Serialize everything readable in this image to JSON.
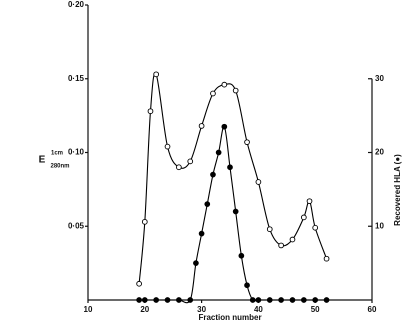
{
  "chart_data": {
    "type": "line",
    "xlabel": "Fraction number",
    "ylabel": "E",
    "ylabel_sup": "1cm",
    "ylabel_sub": "280nm",
    "y2label": "Recovered HLA (●)",
    "xlim": [
      10,
      60
    ],
    "xticks": [
      10,
      20,
      30,
      40,
      50,
      60
    ],
    "ylim": [
      0,
      0.2
    ],
    "yticks": [
      {
        "value": 0.05,
        "label": "0·05"
      },
      {
        "value": 0.1,
        "label": "0·10"
      },
      {
        "value": 0.15,
        "label": "0·15"
      },
      {
        "value": 0.2,
        "label": "0·20"
      }
    ],
    "y2lim": [
      0,
      40
    ],
    "y2ticks": [
      10,
      20,
      30
    ],
    "series": [
      {
        "marker": "open",
        "color": "#000000",
        "x": [
          19,
          20,
          21,
          22,
          24,
          26,
          28,
          30,
          32,
          34,
          36,
          38,
          40,
          42,
          44,
          46,
          48,
          49,
          50,
          52
        ],
        "values": [
          0.011,
          0.053,
          0.128,
          0.153,
          0.104,
          0.09,
          0.094,
          0.118,
          0.14,
          0.146,
          0.142,
          0.107,
          0.08,
          0.048,
          0.037,
          0.041,
          0.056,
          0.067,
          0.049,
          0.028
        ]
      },
      {
        "marker": "filled",
        "color": "#000000",
        "axis": "y2",
        "x": [
          19,
          20,
          22,
          24,
          26,
          28,
          29,
          30,
          31,
          32,
          33,
          34,
          35,
          36,
          37,
          38,
          39,
          40,
          42,
          44,
          46,
          48,
          50,
          52
        ],
        "values": [
          0,
          0,
          0,
          0,
          0,
          0,
          5,
          9,
          13,
          17,
          20,
          23.5,
          18,
          12,
          6,
          2,
          0,
          0,
          0,
          0,
          0,
          0,
          0,
          0
        ]
      }
    ]
  }
}
